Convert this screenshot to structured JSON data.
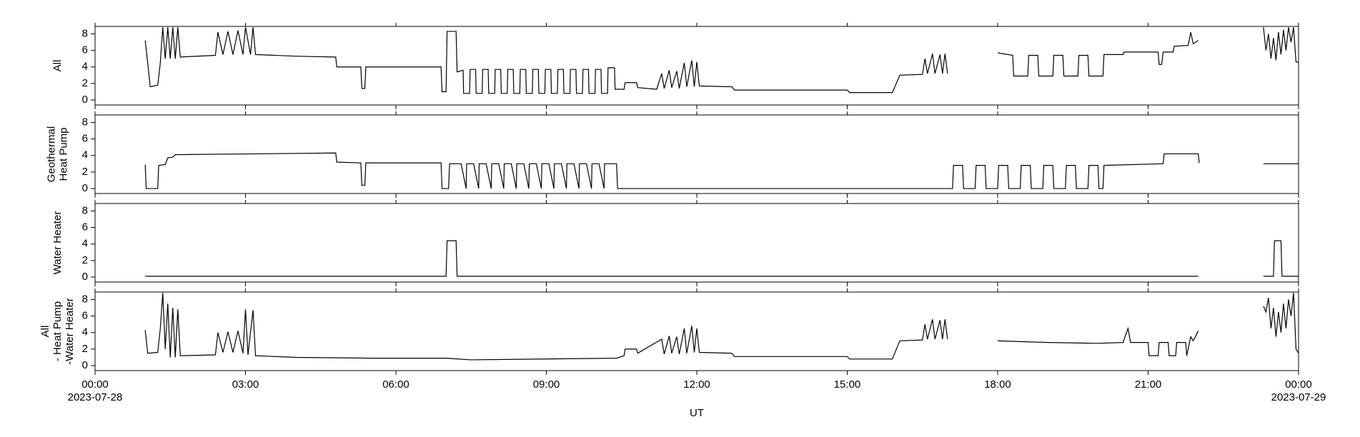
{
  "chart_data": [
    {
      "type": "line",
      "ylabel": [
        "All"
      ],
      "color": "#000000",
      "xlim": [
        0,
        24
      ],
      "xticks": [
        0,
        3,
        6,
        9,
        12,
        15,
        18,
        21,
        24
      ],
      "ylim": [
        -0.6,
        8.9
      ],
      "yticks": [
        0,
        2,
        4,
        6,
        8
      ],
      "x": [
        1.0,
        1.05,
        1.1,
        1.25,
        1.3,
        1.35,
        1.4,
        1.45,
        1.5,
        1.55,
        1.6,
        1.65,
        1.7,
        2.4,
        2.45,
        2.55,
        2.65,
        2.75,
        2.85,
        2.95,
        3.0,
        3.1,
        3.15,
        3.2,
        4.0,
        4.8,
        4.82,
        5.3,
        5.32,
        5.38,
        5.4,
        6.9,
        6.92,
        7.0,
        7.02,
        7.2,
        7.22,
        7.34,
        7.35,
        7.47,
        7.48,
        7.59,
        7.6,
        7.72,
        7.73,
        7.84,
        7.85,
        7.97,
        7.98,
        8.09,
        8.1,
        8.22,
        8.23,
        8.34,
        8.35,
        8.47,
        8.48,
        8.59,
        8.6,
        8.72,
        8.73,
        8.84,
        8.85,
        8.97,
        8.98,
        9.09,
        9.1,
        9.22,
        9.23,
        9.34,
        9.35,
        9.47,
        9.48,
        9.59,
        9.6,
        9.72,
        9.73,
        9.84,
        9.85,
        9.97,
        9.98,
        10.09,
        10.1,
        10.22,
        10.23,
        10.36,
        10.37,
        10.55,
        10.57,
        10.8,
        10.82,
        11.2,
        11.3,
        11.35,
        11.45,
        11.5,
        11.6,
        11.65,
        11.75,
        11.8,
        11.9,
        11.95,
        12.0,
        12.05,
        12.7,
        12.75,
        15.0,
        15.05,
        15.9,
        16.0,
        16.05,
        16.5,
        16.55,
        16.6,
        16.7,
        16.75,
        16.85,
        16.9,
        16.95,
        17.0,
        17.5,
        18.0,
        18.3,
        18.32,
        18.6,
        18.62,
        18.8,
        18.82,
        19.1,
        19.12,
        19.3,
        19.32,
        19.6,
        19.62,
        19.8,
        19.82,
        20.1,
        20.12,
        20.5,
        20.52,
        21.2,
        21.22,
        21.27,
        21.3,
        21.5,
        21.52,
        21.8,
        21.85,
        21.9,
        22.0,
        22.5,
        23.3,
        23.35,
        23.4,
        23.45,
        23.5,
        23.55,
        23.6,
        23.65,
        23.7,
        23.75,
        23.8,
        23.85,
        23.9,
        23.95,
        24
      ],
      "values": [
        7.2,
        4.5,
        1.6,
        1.8,
        4.4,
        8.8,
        5,
        8.8,
        5,
        8.8,
        5,
        8.8,
        5.2,
        5.4,
        8.2,
        5.5,
        8.3,
        5.5,
        8.4,
        5.5,
        8.8,
        5.5,
        8.8,
        5.5,
        5.3,
        5.2,
        4.0,
        4.0,
        1.4,
        1.4,
        4.0,
        4.0,
        1.0,
        1.0,
        8.3,
        8.3,
        3.4,
        3.6,
        0.8,
        0.8,
        3.7,
        3.7,
        0.8,
        0.8,
        3.7,
        3.7,
        0.8,
        0.8,
        3.7,
        3.7,
        0.8,
        0.8,
        3.7,
        3.7,
        0.8,
        0.8,
        3.7,
        3.7,
        0.8,
        0.8,
        3.7,
        3.7,
        0.8,
        0.8,
        3.7,
        3.7,
        0.8,
        0.8,
        3.7,
        3.7,
        0.8,
        0.8,
        3.7,
        3.7,
        0.8,
        0.8,
        3.7,
        3.7,
        0.8,
        0.8,
        3.7,
        3.7,
        0.8,
        0.8,
        3.9,
        3.9,
        1.3,
        1.3,
        2.1,
        2.1,
        1.5,
        1.3,
        3.2,
        1.4,
        3.6,
        1.5,
        3.5,
        1.4,
        4.5,
        1.6,
        4.8,
        1.6,
        4.6,
        1.7,
        1.6,
        1.2,
        1.2,
        0.9,
        0.9,
        2.3,
        3.0,
        3.1,
        5.0,
        3.2,
        5.6,
        3.2,
        5.5,
        3.2,
        5.6,
        3.2,
        null,
        5.7,
        5.4,
        2.9,
        2.9,
        5.4,
        5.4,
        2.9,
        2.9,
        5.4,
        5.4,
        2.9,
        2.9,
        5.4,
        5.4,
        2.9,
        2.9,
        5.5,
        5.5,
        5.8,
        5.8,
        4.3,
        4.3,
        5.8,
        5.8,
        6.5,
        6.6,
        8.2,
        6.8,
        7.2,
        null,
        8.8,
        6,
        8,
        5,
        7.5,
        4.8,
        8.2,
        5.5,
        8.5,
        6,
        8.8,
        7,
        8.8,
        4.6,
        4.6
      ]
    },
    {
      "type": "line",
      "ylabel": [
        "Geothermal",
        "Heat Pump"
      ],
      "color": "#000000",
      "xlim": [
        0,
        24
      ],
      "xticks": [
        0,
        3,
        6,
        9,
        12,
        15,
        18,
        21,
        24
      ],
      "ylim": [
        -0.6,
        8.9
      ],
      "yticks": [
        0,
        2,
        4,
        6,
        8
      ],
      "x": [
        1.0,
        1.02,
        1.25,
        1.27,
        1.4,
        1.45,
        1.55,
        1.6,
        4.8,
        4.82,
        5.3,
        5.32,
        5.38,
        5.4,
        6.9,
        6.92,
        7.05,
        7.07,
        7.3,
        7.4,
        7.41,
        7.54,
        7.55,
        7.65,
        7.66,
        7.79,
        7.8,
        7.9,
        7.91,
        8.04,
        8.05,
        8.15,
        8.16,
        8.29,
        8.3,
        8.4,
        8.41,
        8.54,
        8.55,
        8.65,
        8.66,
        8.79,
        8.8,
        8.9,
        8.91,
        9.04,
        9.05,
        9.15,
        9.16,
        9.29,
        9.3,
        9.4,
        9.41,
        9.54,
        9.55,
        9.65,
        9.66,
        9.79,
        9.8,
        9.9,
        9.91,
        10.04,
        10.05,
        10.15,
        10.16,
        10.4,
        10.42,
        17.1,
        17.12,
        17.3,
        17.32,
        17.55,
        17.57,
        17.75,
        17.77,
        18.0,
        18.02,
        18.2,
        18.22,
        18.45,
        18.47,
        18.65,
        18.67,
        18.9,
        18.92,
        19.1,
        19.12,
        19.35,
        19.37,
        19.55,
        19.57,
        19.8,
        19.82,
        20.0,
        20.02,
        20.1,
        20.12,
        21.3,
        21.32,
        22.0,
        22.02,
        22.5,
        23.3,
        24
      ],
      "values": [
        2.9,
        0,
        0,
        2.8,
        2.9,
        3.7,
        3.8,
        4.1,
        4.3,
        3.2,
        3.1,
        0.4,
        0.4,
        3.1,
        3.1,
        0,
        0,
        3.0,
        3.0,
        0,
        3.0,
        3.0,
        3.0,
        0,
        3.0,
        3.0,
        3.0,
        0,
        3.0,
        3.0,
        3.0,
        0,
        3.0,
        3.0,
        3.0,
        0,
        3.0,
        3.0,
        3.0,
        0,
        3.0,
        3.0,
        3.0,
        0,
        3.0,
        3.0,
        3.0,
        0,
        3.0,
        3.0,
        3.0,
        0,
        3.0,
        3.0,
        3.0,
        0,
        3.0,
        3.0,
        3.0,
        0,
        3.0,
        3.0,
        3.0,
        0,
        3.0,
        3.0,
        0,
        0,
        2.8,
        2.8,
        0,
        0,
        2.8,
        2.8,
        0,
        0,
        2.8,
        2.8,
        0,
        0,
        2.8,
        2.8,
        0,
        0,
        2.8,
        2.8,
        0,
        0,
        2.8,
        2.8,
        0,
        0,
        2.8,
        2.8,
        0,
        0,
        2.8,
        3.0,
        4.2,
        4.2,
        3.1,
        null,
        3.0,
        3.0
      ]
    },
    {
      "type": "line",
      "ylabel": [
        "Water Heater"
      ],
      "color": "#000000",
      "xlim": [
        0,
        24
      ],
      "xticks": [
        0,
        3,
        6,
        9,
        12,
        15,
        18,
        21,
        24
      ],
      "ylim": [
        -0.6,
        8.9
      ],
      "yticks": [
        0,
        2,
        4,
        6,
        8
      ],
      "x": [
        1.0,
        7.0,
        7.02,
        7.2,
        7.22,
        22.0,
        22.5,
        23.3,
        23.5,
        23.52,
        23.65,
        23.67,
        24
      ],
      "values": [
        0.1,
        0.1,
        4.4,
        4.4,
        0.1,
        0.1,
        null,
        0.1,
        0.1,
        4.4,
        4.4,
        0.1,
        0.1
      ]
    },
    {
      "type": "line",
      "ylabel": [
        "All",
        "- Heat Pump",
        "-Water Heater"
      ],
      "color": "#000000",
      "xlim": [
        0,
        24
      ],
      "xticks": [
        {
          "value": 0,
          "label": "00:00"
        },
        {
          "value": 3,
          "label": "03:00"
        },
        {
          "value": 6,
          "label": "06:00"
        },
        {
          "value": 9,
          "label": "09:00"
        },
        {
          "value": 12,
          "label": "12:00"
        },
        {
          "value": 15,
          "label": "15:00"
        },
        {
          "value": 18,
          "label": "18:00"
        },
        {
          "value": 21,
          "label": "21:00"
        },
        {
          "value": 24,
          "label": "00:00"
        }
      ],
      "xtick_dates": [
        {
          "value": 0,
          "label": "2023-07-28"
        },
        {
          "value": 24,
          "label": "2023-07-29"
        }
      ],
      "xlabel": "UT",
      "ylim": [
        -0.6,
        8.9
      ],
      "yticks": [
        0,
        2,
        4,
        6,
        8
      ],
      "x": [
        1.0,
        1.05,
        1.25,
        1.3,
        1.35,
        1.4,
        1.45,
        1.5,
        1.55,
        1.6,
        1.65,
        1.7,
        2.4,
        2.45,
        2.55,
        2.65,
        2.75,
        2.85,
        2.95,
        3.0,
        3.05,
        3.15,
        3.2,
        4.0,
        5.5,
        7.0,
        7.5,
        10.4,
        10.55,
        10.57,
        10.8,
        10.82,
        11.3,
        11.35,
        11.45,
        11.5,
        11.6,
        11.65,
        11.75,
        11.8,
        11.9,
        11.95,
        12.0,
        12.05,
        12.7,
        12.75,
        15.0,
        15.05,
        15.9,
        16.0,
        16.05,
        16.5,
        16.55,
        16.6,
        16.7,
        16.75,
        16.85,
        16.9,
        16.95,
        17.0,
        17.5,
        18.0,
        19.0,
        20.0,
        20.5,
        20.6,
        20.65,
        21.0,
        21.02,
        21.2,
        21.22,
        21.4,
        21.42,
        21.55,
        21.57,
        21.75,
        21.77,
        21.85,
        21.9,
        22.0,
        22.5,
        23.3,
        23.35,
        23.4,
        23.45,
        23.5,
        23.55,
        23.6,
        23.65,
        23.7,
        23.75,
        23.8,
        23.85,
        23.9,
        23.95,
        24
      ],
      "values": [
        4.3,
        1.5,
        1.6,
        4.4,
        8.8,
        2,
        7.5,
        1,
        7,
        1,
        6.8,
        1.2,
        1.3,
        4,
        1.6,
        4.1,
        1.6,
        4.2,
        1.5,
        6.8,
        1.3,
        6.7,
        1.2,
        1.0,
        0.9,
        0.9,
        0.7,
        0.9,
        1.2,
        2.0,
        2.0,
        1.5,
        3.2,
        1.4,
        3.6,
        1.5,
        3.5,
        1.4,
        4.5,
        1.5,
        4.8,
        1.6,
        4.5,
        1.6,
        1.5,
        1.1,
        1.1,
        0.8,
        0.8,
        2.3,
        3.0,
        3.1,
        5.0,
        3.2,
        5.6,
        3.2,
        5.5,
        3.2,
        5.6,
        3.2,
        null,
        3.0,
        2.8,
        2.7,
        2.8,
        4.5,
        2.8,
        2.8,
        1.2,
        1.2,
        2.8,
        2.8,
        1.2,
        1.2,
        2.8,
        2.8,
        1.2,
        3.5,
        3.0,
        4.2,
        null,
        7.2,
        6.5,
        8.2,
        4.5,
        7,
        3.5,
        6.5,
        4,
        7.5,
        4.5,
        8,
        6,
        8.8,
        2.0,
        1.5
      ]
    }
  ]
}
